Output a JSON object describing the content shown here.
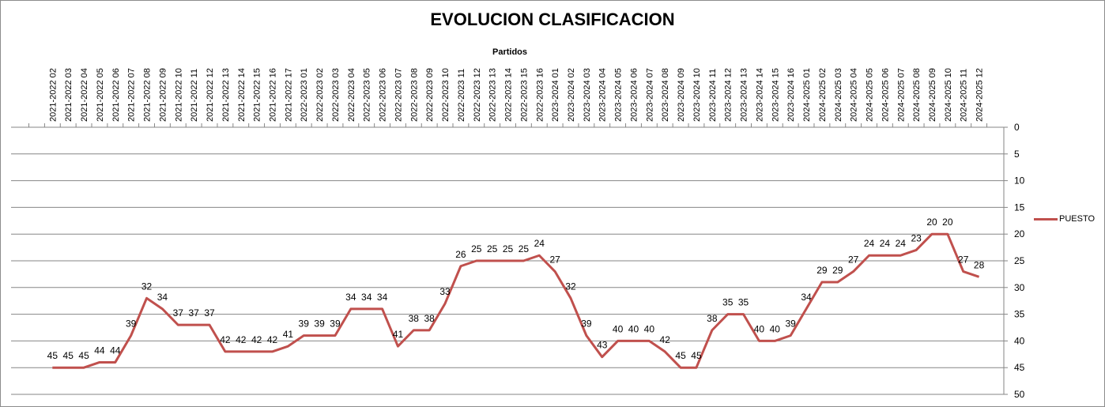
{
  "chart_data": {
    "type": "line",
    "title": "EVOLUCION CLASIFICACION",
    "xlabel": "Partidos",
    "ylabel": "",
    "ylim": [
      0,
      50
    ],
    "y_inverted": true,
    "y_ticks": [
      0,
      5,
      10,
      15,
      20,
      25,
      30,
      35,
      40,
      45,
      50
    ],
    "y_axis_side": "right",
    "x_axis_side": "top",
    "grid": true,
    "legend_position": "right",
    "x": [
      "2021-2022 02",
      "2021-2022 03",
      "2021-2022 04",
      "2021-2022 05",
      "2021-2022 06",
      "2021-2022 07",
      "2021-2022 08",
      "2021-2022 09",
      "2021-2022 10",
      "2021-2022 11",
      "2021-2022 12",
      "2021-2022 13",
      "2021-2022 14",
      "2021-2022 15",
      "2021-2022 16",
      "2021-2022 17",
      "2022-2023 01",
      "2022-2023 02",
      "2022-2023 03",
      "2022-2023 04",
      "2022-2023 05",
      "2022-2023 06",
      "2022-2023 07",
      "2022-2023 08",
      "2022-2023 09",
      "2022-2023 10",
      "2022-2023 11",
      "2022-2023 12",
      "2022-2023 13",
      "2022-2023 14",
      "2022-2023 15",
      "2022-2023 16",
      "2023-2024 01",
      "2023-2024 02",
      "2023-2024 03",
      "2023-2024 04",
      "2023-2024 05",
      "2023-2024 06",
      "2023-2024 07",
      "2023-2024 08",
      "2023-2024 09",
      "2023-2024 10",
      "2023-2024 11",
      "2023-2024 12",
      "2023-2024 13",
      "2023-2024 14",
      "2023-2024 15",
      "2023-2024 16",
      "2024-2025 01",
      "2024-2025 02",
      "2024-2025 03",
      "2024-2025 04",
      "2024-2025 05",
      "2024-2025 06",
      "2024-2025 07",
      "2024-2025 08",
      "2024-2025 09",
      "2024-2025 10",
      "2024-2025 11",
      "2024-2025 12"
    ],
    "series": [
      {
        "name": "PUESTO",
        "color": "#c0504d",
        "values": [
          45,
          45,
          45,
          44,
          44,
          39,
          32,
          34,
          37,
          37,
          37,
          42,
          42,
          42,
          42,
          41,
          39,
          39,
          39,
          34,
          34,
          34,
          41,
          38,
          38,
          33,
          26,
          25,
          25,
          25,
          25,
          24,
          27,
          32,
          39,
          43,
          40,
          40,
          40,
          42,
          45,
          45,
          38,
          35,
          35,
          40,
          40,
          39,
          34,
          29,
          29,
          27,
          24,
          24,
          24,
          23,
          20,
          20,
          27,
          28
        ]
      }
    ]
  }
}
